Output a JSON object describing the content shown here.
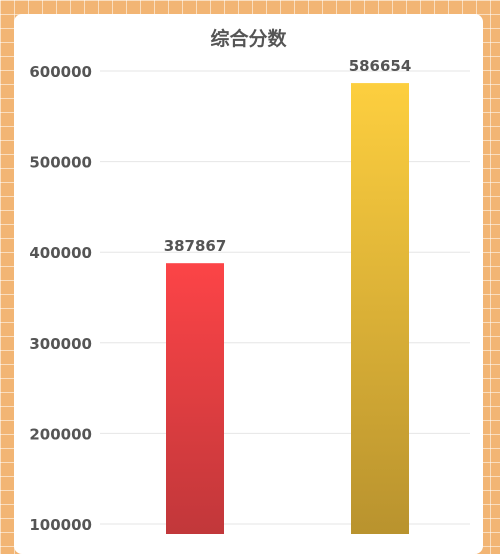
{
  "chart_data": {
    "type": "bar",
    "title": "综合分数",
    "xlabel": "",
    "ylabel": "",
    "categories": [
      "",
      ""
    ],
    "values": [
      387867,
      586654
    ],
    "ylim": [
      100000,
      600000
    ],
    "yticks": [
      "100000",
      "200000",
      "300000",
      "400000",
      "500000",
      "600000"
    ],
    "data_labels": [
      "387867",
      "586654"
    ],
    "grid": true,
    "legend": "none",
    "colors": {
      "bar_1_top": "#fc4447",
      "bar_1_bottom": "#c0373a",
      "bar_2_top": "#fdcf3f",
      "bar_2_bottom": "#b8922e",
      "grid": "#e6e6e6",
      "text": "#555555",
      "background": "#f2b574",
      "card": "#ffffff"
    }
  }
}
